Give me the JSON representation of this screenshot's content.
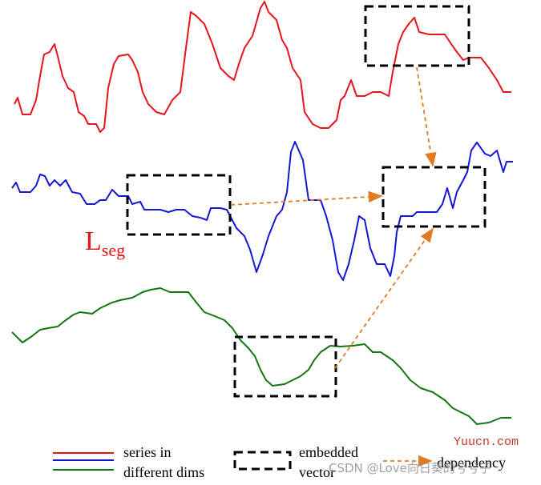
{
  "annotation": {
    "main": "L",
    "subscript": "seg"
  },
  "legend": {
    "series": [
      "series in",
      "different dims"
    ],
    "embedded": [
      "embedded",
      "vector"
    ],
    "dependency": "dependency"
  },
  "watermarks": {
    "site": "Yuucn.com",
    "author": "CSDN @Love向日葵的兮兮子"
  }
}
